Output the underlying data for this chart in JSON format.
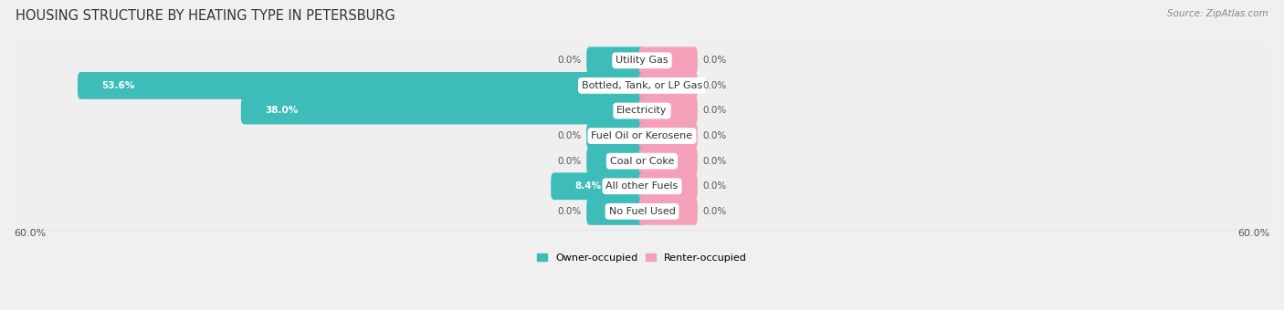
{
  "title": "HOUSING STRUCTURE BY HEATING TYPE IN PETERSBURG",
  "source": "Source: ZipAtlas.com",
  "categories": [
    "Utility Gas",
    "Bottled, Tank, or LP Gas",
    "Electricity",
    "Fuel Oil or Kerosene",
    "Coal or Coke",
    "All other Fuels",
    "No Fuel Used"
  ],
  "owner_values": [
    0.0,
    53.6,
    38.0,
    0.0,
    0.0,
    8.4,
    0.0
  ],
  "renter_values": [
    0.0,
    0.0,
    0.0,
    0.0,
    0.0,
    0.0,
    0.0
  ],
  "owner_color": "#3DBCBA",
  "renter_color": "#F4A0B8",
  "axis_max": 60.0,
  "stub_size": 5.0,
  "bg_color": "#f0f0f0",
  "row_bg_color": "#e8e8ed",
  "row_bg_inner": "#f4f4f7",
  "label_fontsize": 8.0,
  "title_fontsize": 10.5,
  "source_fontsize": 7.5,
  "tick_fontsize": 8.0,
  "value_fontsize": 7.5
}
